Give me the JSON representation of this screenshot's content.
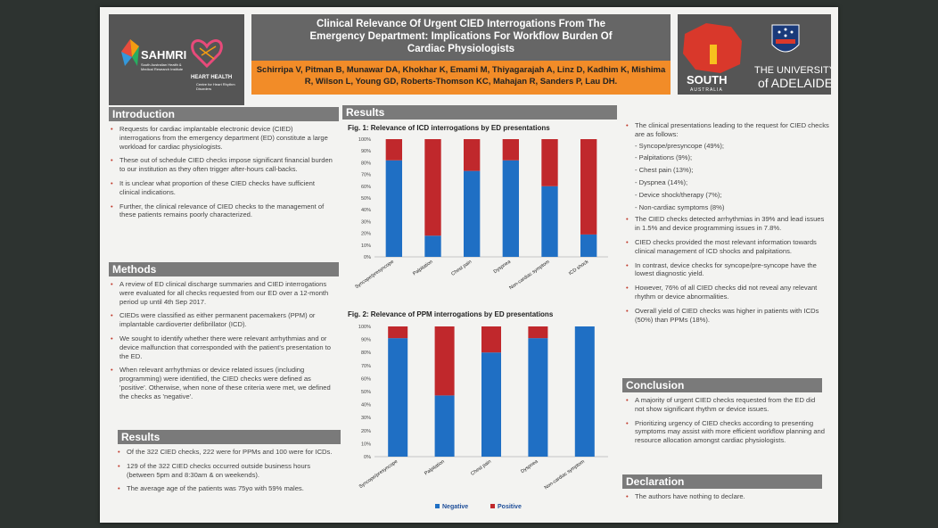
{
  "header": {
    "title_lines": [
      "Clinical Relevance Of Urgent CIED Interrogations From The",
      "Emergency Department: Implications For Workflow Burden Of",
      "Cardiac Physiologists"
    ],
    "author_lines": [
      "Schirripa V, Pitman B, Munawar DA, Khokhar K, Emami M, Thiyagarajah A, Linz D, Kadhim K, Mishima",
      "R, Wilson L, Young GD, Roberts-Thomson KC, Mahajan R, Sanders P, Lau DH."
    ]
  },
  "logos": {
    "sahmri": "SAHMRI",
    "sahmri_sub": "South Australian Health & Medical Research Institute",
    "heart_health": "HEART HEALTH",
    "heart_sub": "Centre for Heart Rhythm Disorders",
    "south": "SOUTH",
    "australia": "AUSTRALIA",
    "uni_line1": "THE UNIVERSITY",
    "uni_line2": "of ADELAIDE"
  },
  "sections": {
    "introduction": "Introduction",
    "methods": "Methods",
    "results_left": "Results",
    "results_main": "Results",
    "conclusion": "Conclusion",
    "declaration": "Declaration"
  },
  "introduction": [
    "Requests for cardiac implantable electronic device (CIED) interrogations from the emergency department (ED) constitute a large workload for cardiac physiologists.",
    "These out of schedule CIED checks impose significant financial burden to our institution as they often trigger after-hours call-backs.",
    "It is unclear what proportion of these CIED checks have sufficient clinical indications.",
    "Further, the clinical relevance of CIED checks to the management of these patients remains poorly characterized."
  ],
  "methods": [
    "A review of ED clinical discharge summaries and CIED interrogations were evaluated for all checks requested from our ED over a 12-month period up until 4th Sep 2017.",
    "CIEDs were classified as either permanent pacemakers (PPM) or implantable cardioverter defibrillator (ICD).",
    "We sought to identify whether there were relevant arrhythmias and or device malfunction that corresponded with the patient's presentation to the ED.",
    "When relevant arrhythmias or device related issues (including programming) were identified, the CIED checks were defined as 'positive'. Otherwise, when none of these criteria were met, we defined the checks as 'negative'."
  ],
  "results_left": [
    "Of the 322 CIED checks, 222 were for PPMs and 100 were for ICDs.",
    "129 of the 322 CIED checks occurred outside business hours (between 5pm and 8:30am & on weekends).",
    "The average age of the patients was 75yo with 59% males."
  ],
  "results_right_intro": "The clinical presentations leading to the request for CIED checks are as follows:",
  "presentations": [
    "- Syncope/presyncope (49%);",
    "- Palpitations (9%);",
    "- Chest pain (13%);",
    "- Dyspnea (14%);",
    "- Device shock/therapy (7%);",
    "- Non-cardiac symptoms (8%)"
  ],
  "results_right": [
    "The CIED checks detected arrhythmias in 39% and lead issues in 1.5% and device programming issues in 7.8%.",
    "CIED checks provided the most relevant information towards clinical management of ICD shocks and palpitations.",
    "In contrast, device checks for syncope/pre-syncope have the lowest diagnostic yield.",
    "However, 76% of all CIED checks did not reveal any relevant rhythm or device abnormalities.",
    "Overall yield of CIED checks was higher in patients with ICDs (50%) than PPMs (18%)."
  ],
  "conclusion": [
    "A majority of urgent CIED checks requested from the ED did not show significant rhythm or device issues.",
    "Prioritizing urgency of CIED checks according to presenting symptoms may assist with more efficient workflow planning and resource allocation amongst cardiac physiologists."
  ],
  "declaration": [
    "The authors have nothing to declare."
  ],
  "colors": {
    "negative": "#1f6fc4",
    "positive": "#c0282c",
    "orange": "#f28c28",
    "section": "#7a7a7a"
  },
  "chart_data": [
    {
      "type": "bar",
      "title": "Fig. 1: Relevance of ICD interrogations by ED presentations",
      "stacked": true,
      "categories": [
        "Syncope/presyncope",
        "Palpitation",
        "Chest pain",
        "Dyspnea",
        "Non-cardiac symptom",
        "ICD shock"
      ],
      "series": [
        {
          "name": "Negative",
          "values": [
            82,
            18,
            73,
            82,
            60,
            19
          ]
        },
        {
          "name": "Positive",
          "values": [
            18,
            82,
            27,
            18,
            40,
            81
          ]
        }
      ],
      "ylim": [
        0,
        100
      ],
      "yticks": [
        "0%",
        "10%",
        "20%",
        "30%",
        "40%",
        "50%",
        "60%",
        "70%",
        "80%",
        "90%",
        "100%"
      ]
    },
    {
      "type": "bar",
      "title": "Fig. 2: Relevance of PPM interrogations by ED presentations",
      "stacked": true,
      "categories": [
        "Syncope/presyncope",
        "Palpitation",
        "Chest pain",
        "Dyspnea",
        "Non-cardiac symptom"
      ],
      "series": [
        {
          "name": "Negative",
          "values": [
            91,
            47,
            80,
            91,
            100
          ]
        },
        {
          "name": "Positive",
          "values": [
            9,
            53,
            20,
            9,
            0
          ]
        }
      ],
      "ylim": [
        0,
        100
      ],
      "yticks": [
        "0%",
        "10%",
        "20%",
        "30%",
        "40%",
        "50%",
        "60%",
        "70%",
        "80%",
        "90%",
        "100%"
      ],
      "legend": [
        "Negative",
        "Positive"
      ]
    }
  ]
}
